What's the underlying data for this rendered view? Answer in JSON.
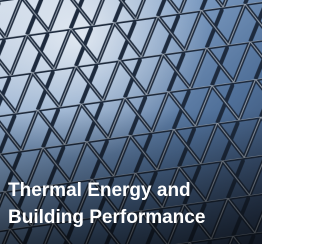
{
  "caption": {
    "line1": "Thermal Energy and",
    "line2": "Building Performance"
  }
}
